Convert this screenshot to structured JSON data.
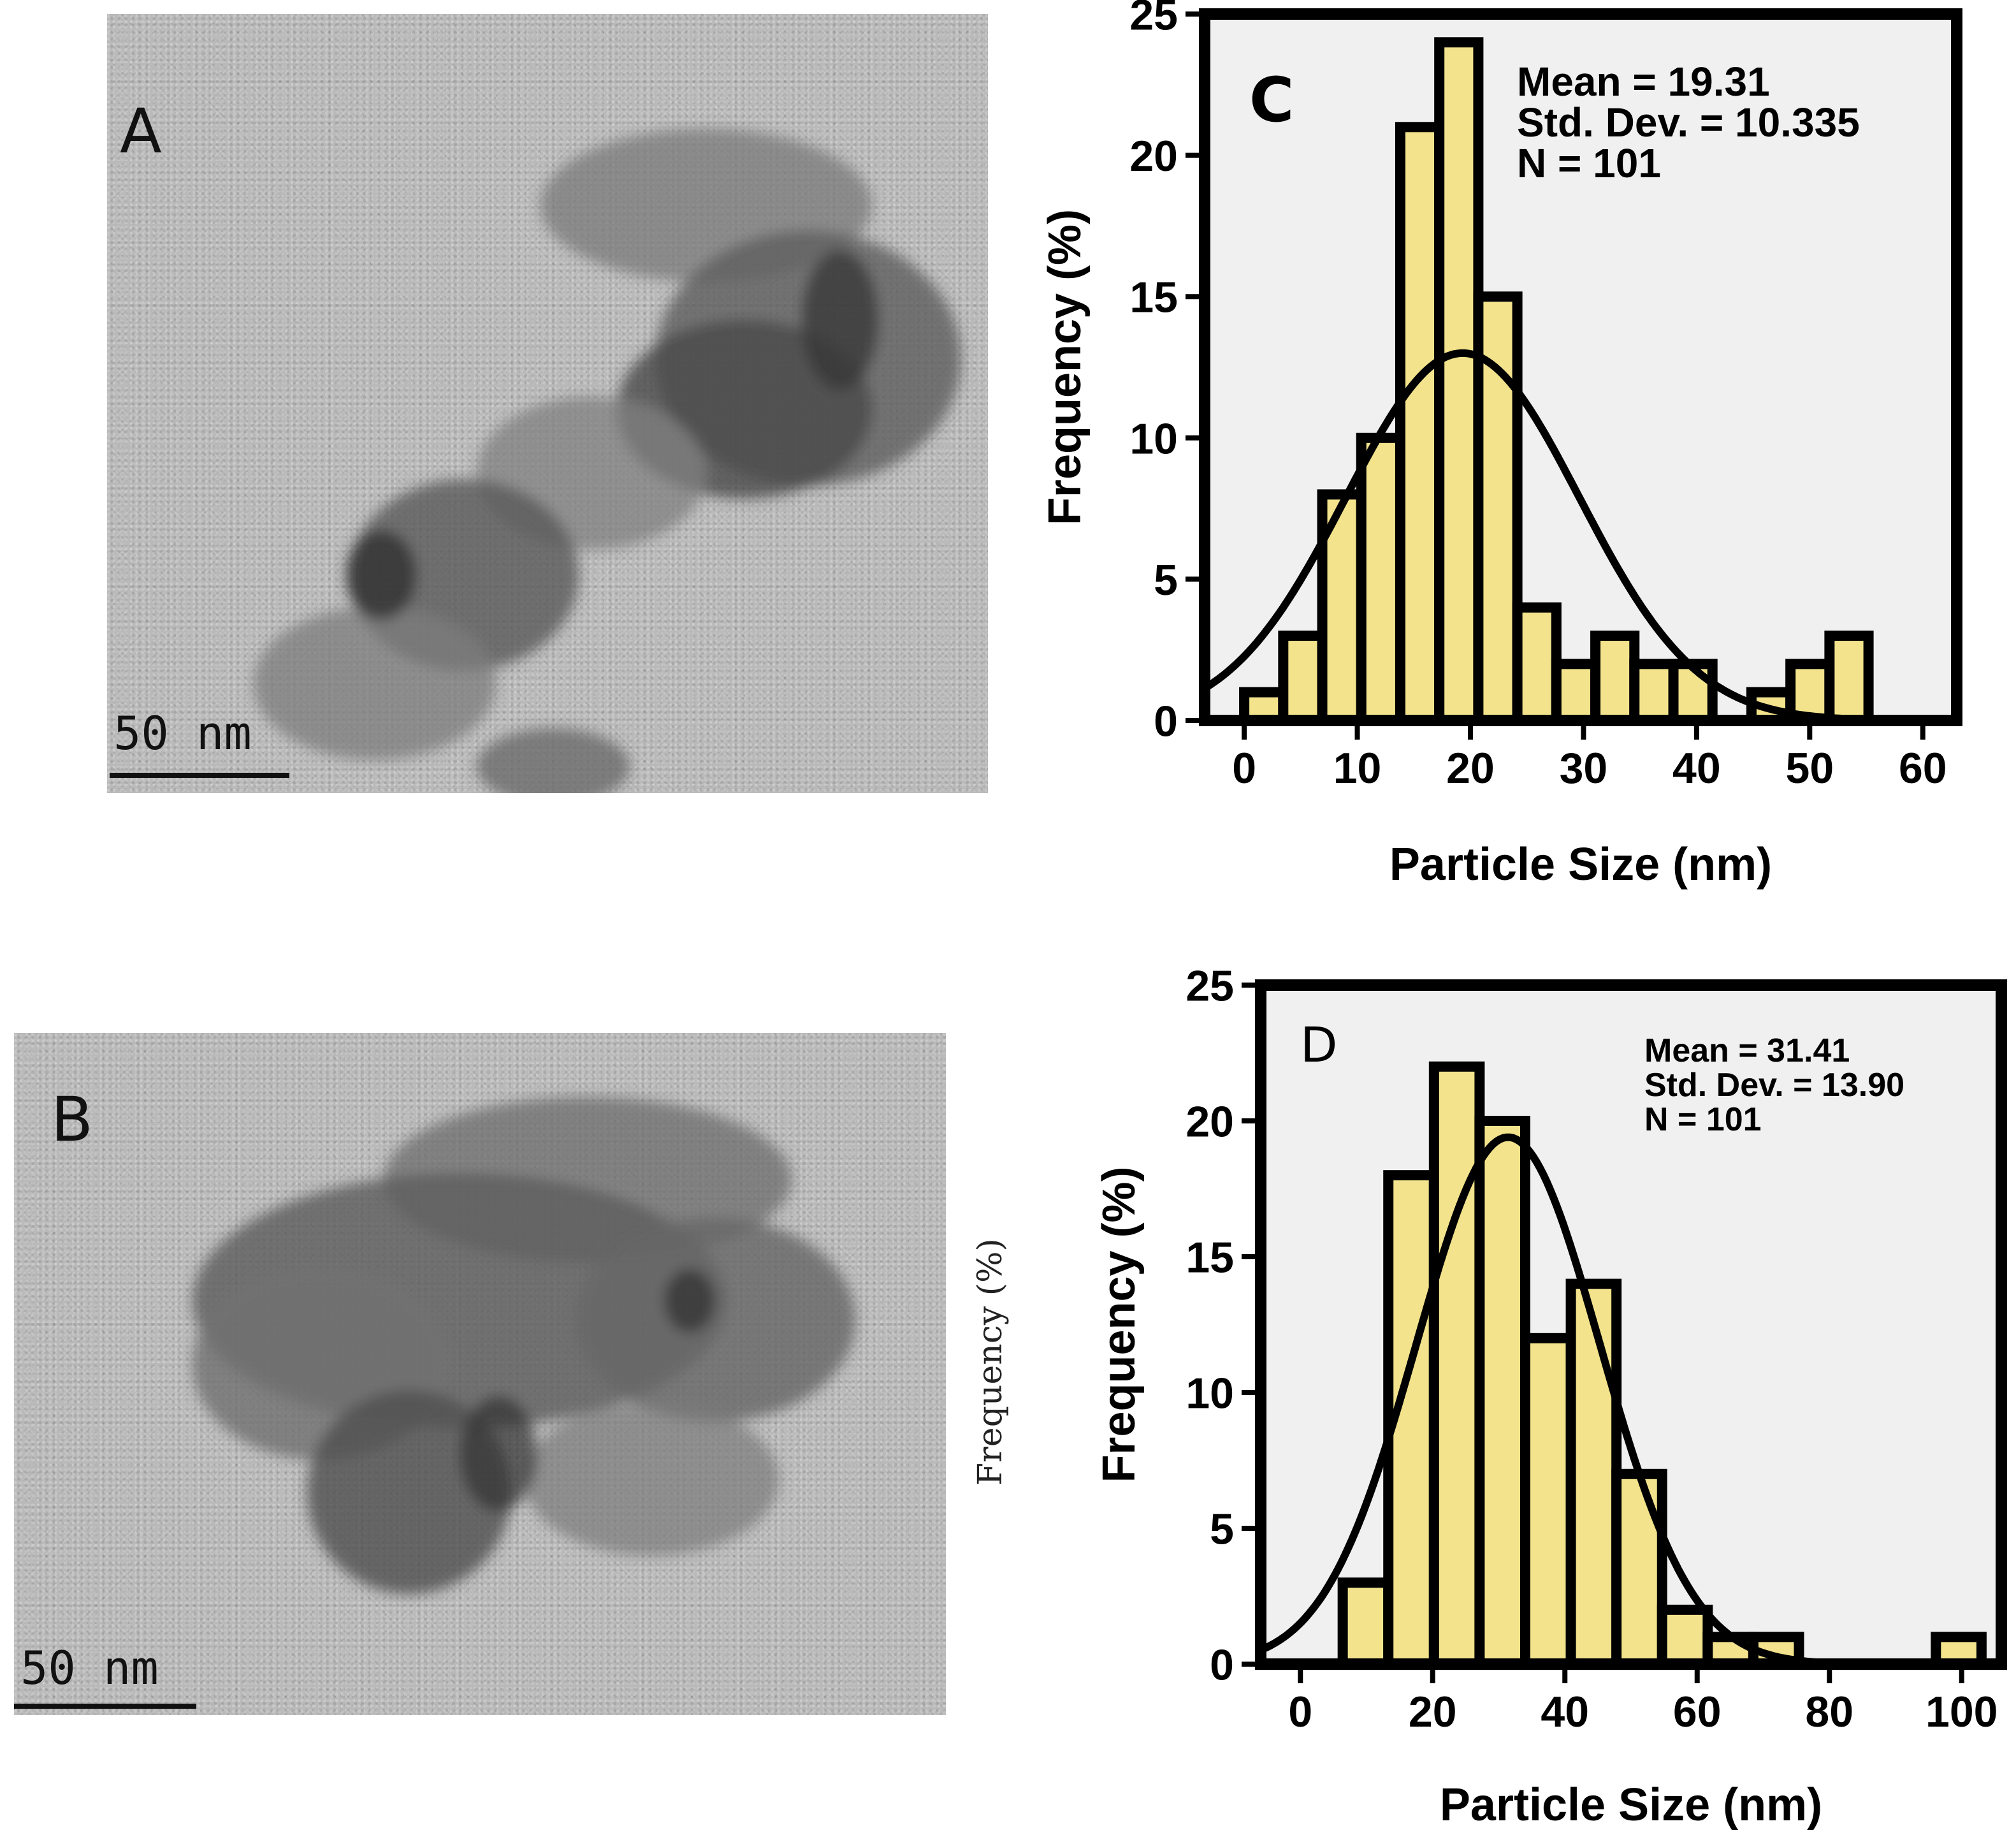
{
  "panels": {
    "A": {
      "letter": "A",
      "scale_bar": "50 nm"
    },
    "B": {
      "letter": "B",
      "scale_bar": "50 nm"
    }
  },
  "stray_label": "Frequency (%)",
  "colors": {
    "bar_fill": "#f2e38c",
    "bar_stroke": "#000000",
    "plot_bg": "#f0f0f0",
    "tem_bg": "#b9b9b9"
  },
  "chart_data": [
    {
      "type": "bar",
      "panel_letter": "C",
      "xlabel": "Particle Size (nm)",
      "ylabel": "Frequency (%)",
      "xlim": [
        -3.5,
        63
      ],
      "ylim": [
        0,
        25
      ],
      "xticks": [
        0,
        10,
        20,
        30,
        40,
        50,
        60
      ],
      "yticks": [
        0,
        5,
        10,
        15,
        20,
        25
      ],
      "bin_width": 3.45,
      "bin_edges_start": 0,
      "values": [
        1,
        3,
        8,
        10,
        21,
        24,
        15,
        4,
        2,
        3,
        2,
        2,
        0,
        1,
        2,
        3
      ],
      "stats": [
        "Mean = 19.31",
        "Std. Dev. = 10.335",
        "N = 101"
      ],
      "normal_curve": {
        "mean": 19.31,
        "sd": 10.335,
        "peak": 13
      }
    },
    {
      "type": "bar",
      "panel_letter": "D",
      "xlabel": "Particle Size (nm)",
      "ylabel": "Frequency (%)",
      "xlim": [
        -6,
        106
      ],
      "ylim": [
        0,
        25
      ],
      "xticks": [
        0,
        20,
        40,
        60,
        80,
        100
      ],
      "yticks": [
        0,
        5,
        10,
        15,
        20,
        25
      ],
      "bin_width": 6.9,
      "bin_edges_start": 6.4,
      "values": [
        3,
        18,
        22,
        20,
        12,
        14,
        7,
        2,
        1,
        1,
        0,
        0,
        0,
        1
      ],
      "stats": [
        "Mean = 31.41",
        "Std. Dev. = 13.90",
        "N = 101"
      ],
      "normal_curve": {
        "mean": 31.41,
        "sd": 13.9,
        "peak": 19.4
      }
    }
  ]
}
